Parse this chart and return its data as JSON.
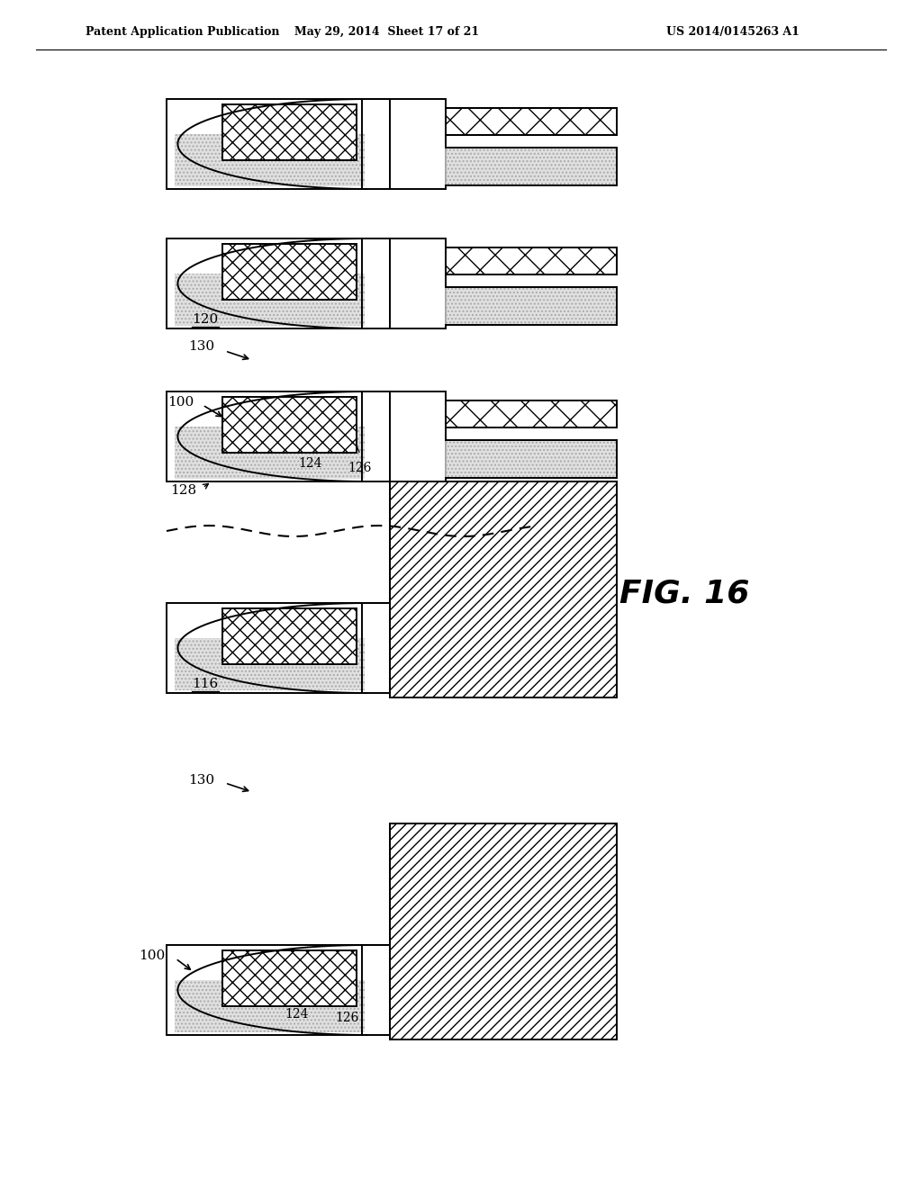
{
  "header_left": "Patent Application Publication",
  "header_center": "May 29, 2014  Sheet 17 of 21",
  "header_right": "US 2014/0145263 A1",
  "fig_label": "FIG. 16",
  "bg": "#ffffff",
  "lc": "#000000"
}
